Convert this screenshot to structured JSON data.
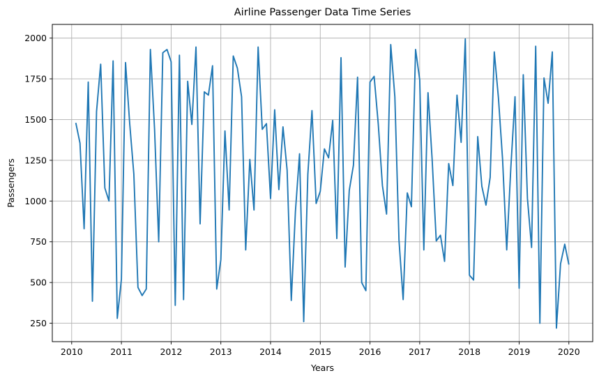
{
  "chart_data": {
    "type": "line",
    "title": "Airline Passenger Data Time Series",
    "xlabel": "Years",
    "ylabel": "Passengers",
    "xlim": [
      2009.61,
      2020.48
    ],
    "ylim": [
      137,
      2084
    ],
    "x_ticks": [
      2010,
      2011,
      2012,
      2013,
      2014,
      2015,
      2016,
      2017,
      2018,
      2019,
      2020
    ],
    "y_ticks": [
      250,
      500,
      750,
      1000,
      1250,
      1500,
      1750,
      2000
    ],
    "grid": true,
    "series_color": "#1f77b4",
    "series": [
      {
        "x": [
          2010.083,
          2010.167,
          2010.25,
          2010.333,
          2010.417,
          2010.5,
          2010.583,
          2010.667,
          2010.75,
          2010.833,
          2010.917,
          2011.0,
          2011.083,
          2011.167,
          2011.25,
          2011.333,
          2011.417,
          2011.5,
          2011.583,
          2011.667,
          2011.75,
          2011.833,
          2011.917,
          2012.0,
          2012.083,
          2012.167,
          2012.25,
          2012.333,
          2012.417,
          2012.5,
          2012.583,
          2012.667,
          2012.75,
          2012.833,
          2012.917,
          2013.0,
          2013.083,
          2013.167,
          2013.25,
          2013.333,
          2013.417,
          2013.5,
          2013.583,
          2013.667,
          2013.75,
          2013.833,
          2013.917,
          2014.0,
          2014.083,
          2014.167,
          2014.25,
          2014.333,
          2014.417,
          2014.5,
          2014.583,
          2014.667,
          2014.75,
          2014.833,
          2014.917,
          2015.0,
          2015.083,
          2015.167,
          2015.25,
          2015.333,
          2015.417,
          2015.5,
          2015.583,
          2015.667,
          2015.75,
          2015.833,
          2015.917,
          2016.0,
          2016.083,
          2016.167,
          2016.25,
          2016.333,
          2016.417,
          2016.5,
          2016.583,
          2016.667,
          2016.75,
          2016.833,
          2016.917,
          2017.0,
          2017.083,
          2017.167,
          2017.25,
          2017.333,
          2017.417,
          2017.5,
          2017.583,
          2017.667,
          2017.75,
          2017.833,
          2017.917,
          2018.0,
          2018.083,
          2018.167,
          2018.25,
          2018.333,
          2018.417,
          2018.5,
          2018.583,
          2018.667,
          2018.75,
          2018.833,
          2018.917,
          2019.0,
          2019.083,
          2019.167,
          2019.25,
          2019.333,
          2019.417,
          2019.5,
          2019.583,
          2019.667,
          2019.75,
          2019.833,
          2019.917,
          2020.0
        ],
        "values": [
          1480,
          1355,
          830,
          1730,
          385,
          1550,
          1840,
          1080,
          1000,
          1860,
          280,
          520,
          1850,
          1475,
          1165,
          470,
          420,
          460,
          1930,
          1440,
          750,
          1910,
          1930,
          1855,
          360,
          1895,
          395,
          1735,
          1470,
          1945,
          860,
          1670,
          1650,
          1830,
          460,
          640,
          1430,
          945,
          1890,
          1815,
          1640,
          700,
          1255,
          945,
          1945,
          1440,
          1475,
          1015,
          1560,
          1070,
          1455,
          1190,
          390,
          935,
          1290,
          260,
          1165,
          1555,
          985,
          1060,
          1320,
          1265,
          1495,
          770,
          1880,
          595,
          1065,
          1220,
          1760,
          500,
          450,
          1730,
          1765,
          1470,
          1095,
          920,
          1960,
          1640,
          760,
          395,
          1050,
          965,
          1930,
          1745,
          700,
          1665,
          1255,
          755,
          790,
          630,
          1230,
          1095,
          1650,
          1360,
          1995,
          545,
          515,
          1395,
          1090,
          975,
          1145,
          1915,
          1635,
          1255,
          700,
          1205,
          1640,
          465,
          1775,
          1015,
          715,
          1950,
          250,
          1755,
          1600,
          1915,
          220,
          615,
          735,
          610
        ]
      }
    ]
  }
}
